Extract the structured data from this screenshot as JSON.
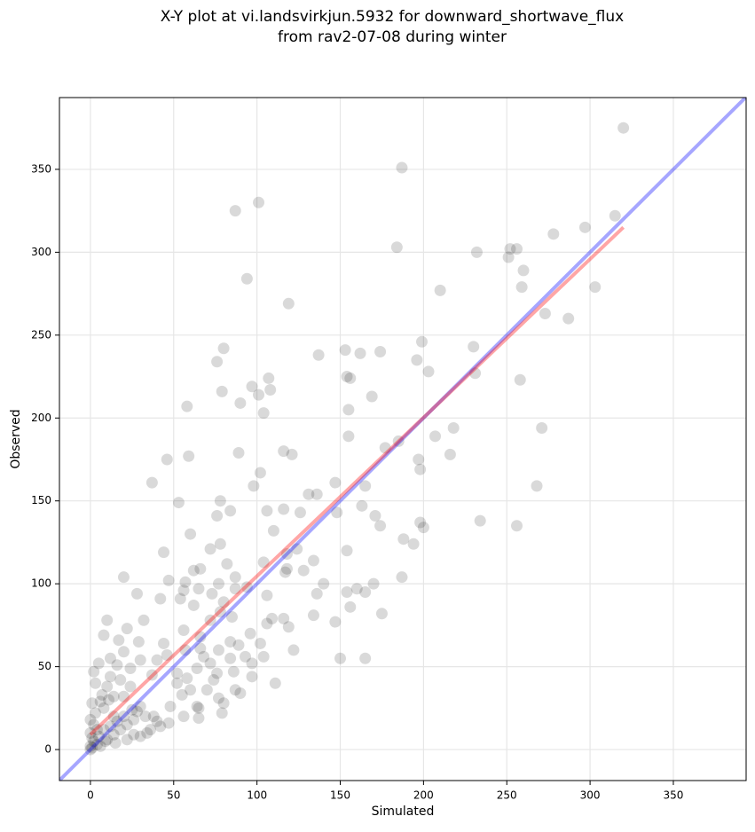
{
  "chart_data": {
    "type": "scatter",
    "title": "X-Y plot at vi.landsvirkjun.5932 for downward_shortwave_flux",
    "subtitle": "from rav2-07-08 during winter",
    "x_label": "Simulated",
    "y_label": "Observed",
    "xlim": [
      -18.6,
      393.7
    ],
    "ylim": [
      -18.7,
      393.3
    ],
    "xticks": [
      0,
      50,
      100,
      150,
      200,
      250,
      300,
      350
    ],
    "yticks": [
      0,
      50,
      100,
      150,
      200,
      250,
      300,
      350
    ],
    "grid": true,
    "color": "rgba(0,0,0,0.15)",
    "x": [
      320,
      187,
      101,
      87,
      315,
      184,
      256,
      252,
      278,
      297,
      232,
      251,
      260,
      94,
      259,
      303,
      210,
      119,
      273,
      287,
      80,
      230,
      199,
      153,
      137,
      162,
      174,
      76,
      196,
      107,
      154,
      156,
      203,
      231,
      258,
      97,
      108,
      79,
      101,
      169,
      90,
      104,
      58,
      155,
      218,
      271,
      207,
      216,
      155,
      185,
      177,
      46,
      59,
      89,
      116,
      121,
      197,
      198,
      102,
      37,
      147,
      98,
      165,
      268,
      131,
      136,
      78,
      53,
      116,
      148,
      106,
      126,
      84,
      163,
      171,
      76,
      174,
      198,
      200,
      256,
      234,
      60,
      110,
      188,
      194,
      78,
      72,
      44,
      118,
      124,
      104,
      134,
      154,
      118,
      128,
      82,
      87,
      66,
      57,
      62,
      20,
      47,
      77,
      140,
      160,
      117,
      94,
      65,
      54,
      73,
      80,
      42,
      87,
      28,
      56,
      106,
      170,
      187,
      165,
      154,
      62,
      78,
      116,
      109,
      134,
      136,
      156,
      175,
      147,
      72,
      10,
      85,
      96,
      119,
      106,
      56,
      32,
      22,
      17,
      44,
      29,
      8,
      66,
      66,
      84,
      89,
      102,
      57,
      77,
      93,
      84,
      104,
      122,
      150,
      165,
      30,
      40,
      12,
      46,
      2,
      5,
      16,
      24,
      37,
      52,
      64,
      76,
      74,
      97,
      111,
      97,
      87,
      90,
      77,
      80,
      79,
      65,
      65,
      56,
      47,
      40,
      33,
      28,
      20,
      11,
      10,
      6,
      14,
      3,
      0,
      2,
      5,
      8,
      12,
      16,
      20,
      25,
      30,
      4,
      1,
      0,
      6,
      10,
      14,
      18,
      22,
      26,
      36,
      42,
      48,
      55,
      60,
      70,
      52,
      58,
      64,
      86,
      68,
      72,
      30,
      34,
      38,
      24,
      18,
      14,
      8,
      2,
      1,
      0,
      3,
      7,
      12,
      20,
      26,
      4,
      9,
      15,
      22,
      0,
      1
    ],
    "values": [
      375,
      351,
      330,
      325,
      322,
      303,
      302,
      302,
      311,
      315,
      300,
      297,
      289,
      284,
      279,
      279,
      277,
      269,
      263,
      260,
      242,
      243,
      246,
      241,
      238,
      239,
      240,
      234,
      235,
      224,
      225,
      224,
      228,
      227,
      223,
      219,
      217,
      216,
      214,
      213,
      209,
      203,
      207,
      205,
      194,
      194,
      189,
      178,
      189,
      186,
      182,
      175,
      177,
      179,
      180,
      178,
      175,
      169,
      167,
      161,
      161,
      159,
      159,
      159,
      154,
      154,
      150,
      149,
      145,
      143,
      144,
      143,
      144,
      147,
      141,
      141,
      135,
      137,
      134,
      135,
      138,
      130,
      132,
      127,
      124,
      124,
      121,
      119,
      118,
      121,
      113,
      114,
      120,
      109,
      108,
      112,
      104,
      109,
      101,
      108,
      104,
      102,
      100,
      100,
      97,
      107,
      98,
      97,
      91,
      94,
      89,
      91,
      97,
      94,
      96,
      93,
      100,
      104,
      95,
      95,
      87,
      83,
      79,
      79,
      81,
      94,
      86,
      82,
      77,
      78,
      78,
      80,
      70,
      74,
      76,
      72,
      78,
      73,
      66,
      64,
      65,
      69,
      68,
      61,
      65,
      63,
      64,
      60,
      60,
      56,
      55,
      56,
      60,
      55,
      55,
      54,
      54,
      55,
      57,
      47,
      52,
      51,
      49,
      45,
      46,
      49,
      46,
      42,
      44,
      40,
      52,
      36,
      34,
      31,
      28,
      22,
      25,
      19,
      20,
      16,
      17,
      20,
      23,
      32,
      30,
      38,
      29,
      20,
      22,
      10,
      5,
      8,
      12,
      14,
      17,
      20,
      24,
      26,
      3,
      1,
      0,
      2,
      6,
      9,
      12,
      15,
      18,
      12,
      14,
      26,
      33,
      36,
      36,
      40,
      43,
      26,
      47,
      56,
      52,
      8,
      10,
      20,
      38,
      42,
      32,
      25,
      15,
      28,
      18,
      40,
      33,
      44,
      59,
      9,
      12,
      5,
      4,
      6,
      2,
      7
    ],
    "lines": [
      {
        "x": [
          -18.6,
          393.7
        ],
        "values": [
          -18.6,
          393.7
        ],
        "color": "rgba(0,0,255,0.35)"
      },
      {
        "x": [
          0,
          320
        ],
        "values": [
          9,
          315
        ],
        "color": "rgba(255,0,0,0.35)"
      }
    ]
  }
}
